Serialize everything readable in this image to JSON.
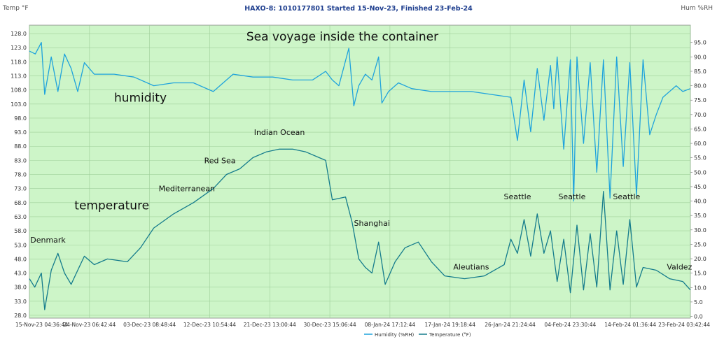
{
  "window": {
    "title": "HAXO-8: 1010177801 Started 15-Nov-23, Finished 23-Feb-24",
    "left_unit": "Temp °F",
    "right_unit": "Hum %RH"
  },
  "chart_data": {
    "type": "line",
    "plot_background": "#cdf5c8",
    "grid": true,
    "x_axis": {
      "type": "datetime",
      "range": [
        "2023-11-15T04:36:44",
        "2024-02-23T03:42:44"
      ],
      "tick_values": [
        "2023-11-15T04:36:44",
        "2023-11-24T06:42:44",
        "2023-12-03T08:48:44",
        "2023-12-12T10:54:44",
        "2023-12-21T13:00:44",
        "2023-12-30T15:06:44",
        "2024-01-08T17:12:44",
        "2024-01-17T19:18:44",
        "2024-01-26T21:24:44",
        "2024-02-04T23:30:44",
        "2024-02-14T01:36:44",
        "2024-02-23T03:42:44"
      ],
      "tick_labels": [
        "15-Nov-23 04:36:44",
        "24-Nov-23 06:42:44",
        "03-Dec-23 08:48:44",
        "12-Dec-23 10:54:44",
        "21-Dec-23 13:00:44",
        "30-Dec-23 15:06:44",
        "08-Jan-24 17:12:44",
        "17-Jan-24 19:18:44",
        "26-Jan-24 21:24:44",
        "04-Feb-24 23:30:44",
        "14-Feb-24 01:36:44",
        "23-Feb-24 03:42:44"
      ]
    },
    "y_left": {
      "unit": "Temp °F",
      "range": [
        27,
        131
      ],
      "ticks": [
        "128.0",
        "123.0",
        "118.0",
        "113.0",
        "108.0",
        "103.0",
        "98.0",
        "93.0",
        "88.0",
        "83.0",
        "78.0",
        "73.0",
        "68.0",
        "63.0",
        "58.0",
        "53.0",
        "48.0",
        "43.0",
        "38.0",
        "33.0",
        "28.0"
      ]
    },
    "y_right": {
      "unit": "Hum %RH",
      "range": [
        -0.6,
        101
      ],
      "ticks": [
        "95.0",
        "90.0",
        "85.0",
        "80.0",
        "75.0",
        "70.0",
        "65.0",
        "60.0",
        "55.0",
        "50.0",
        "45.0",
        "40.0",
        "35.0",
        "30.0",
        "25.0",
        "20.0",
        "15.0",
        "10.0",
        "5.0",
        "0.0"
      ]
    },
    "series": [
      {
        "name": "Humidity (%RH)",
        "axis": "right",
        "color": "#1fa3dc",
        "points": [
          [
            "2023-11-15T04:36:44",
            92
          ],
          [
            "2023-11-16T02:00:00",
            91
          ],
          [
            "2023-11-17T00:00:00",
            95
          ],
          [
            "2023-11-17T12:00:00",
            77
          ],
          [
            "2023-11-18T12:00:00",
            90
          ],
          [
            "2023-11-19T12:00:00",
            78
          ],
          [
            "2023-11-20T12:00:00",
            91
          ],
          [
            "2023-11-21T12:00:00",
            86
          ],
          [
            "2023-11-22T12:00:00",
            78
          ],
          [
            "2023-11-23T12:00:00",
            88
          ],
          [
            "2023-11-25T00:00:00",
            84
          ],
          [
            "2023-11-28T00:00:00",
            84
          ],
          [
            "2023-12-01T00:00:00",
            83
          ],
          [
            "2023-12-04T00:00:00",
            80
          ],
          [
            "2023-12-07T00:00:00",
            81
          ],
          [
            "2023-12-10T00:00:00",
            81
          ],
          [
            "2023-12-13T00:00:00",
            78
          ],
          [
            "2023-12-16T00:00:00",
            84
          ],
          [
            "2023-12-19T00:00:00",
            83
          ],
          [
            "2023-12-22T00:00:00",
            83
          ],
          [
            "2023-12-25T00:00:00",
            82
          ],
          [
            "2023-12-28T00:00:00",
            82
          ],
          [
            "2023-12-30T00:00:00",
            85
          ],
          [
            "2023-12-31T00:00:00",
            82
          ],
          [
            "2024-01-01T00:00:00",
            80
          ],
          [
            "2024-01-02T12:00:00",
            93
          ],
          [
            "2024-01-03T06:00:00",
            73
          ],
          [
            "2024-01-04T00:00:00",
            80
          ],
          [
            "2024-01-05T00:00:00",
            84
          ],
          [
            "2024-01-06T00:00:00",
            82
          ],
          [
            "2024-01-07T00:00:00",
            90
          ],
          [
            "2024-01-07T12:00:00",
            74
          ],
          [
            "2024-01-08T12:00:00",
            78
          ],
          [
            "2024-01-10T00:00:00",
            81
          ],
          [
            "2024-01-12T00:00:00",
            79
          ],
          [
            "2024-01-15T00:00:00",
            78
          ],
          [
            "2024-01-18T00:00:00",
            78
          ],
          [
            "2024-01-21T00:00:00",
            78
          ],
          [
            "2024-01-24T00:00:00",
            77
          ],
          [
            "2024-01-27T00:00:00",
            76
          ],
          [
            "2024-01-28T00:00:00",
            61
          ],
          [
            "2024-01-29T00:00:00",
            82
          ],
          [
            "2024-01-30T00:00:00",
            64
          ],
          [
            "2024-01-31T00:00:00",
            86
          ],
          [
            "2024-02-01T00:00:00",
            68
          ],
          [
            "2024-02-02T00:00:00",
            87
          ],
          [
            "2024-02-02T12:00:00",
            72
          ],
          [
            "2024-02-03T00:00:00",
            90
          ],
          [
            "2024-02-04T00:00:00",
            58
          ],
          [
            "2024-02-05T00:00:00",
            89
          ],
          [
            "2024-02-05T12:00:00",
            40
          ],
          [
            "2024-02-06T00:00:00",
            90
          ],
          [
            "2024-02-07T00:00:00",
            60
          ],
          [
            "2024-02-08T00:00:00",
            88
          ],
          [
            "2024-02-09T00:00:00",
            50
          ],
          [
            "2024-02-10T00:00:00",
            89
          ],
          [
            "2024-02-11T00:00:00",
            41
          ],
          [
            "2024-02-12T00:00:00",
            90
          ],
          [
            "2024-02-13T00:00:00",
            52
          ],
          [
            "2024-02-14T00:00:00",
            88
          ],
          [
            "2024-02-15T00:00:00",
            42
          ],
          [
            "2024-02-16T00:00:00",
            89
          ],
          [
            "2024-02-17T00:00:00",
            63
          ],
          [
            "2024-02-18T00:00:00",
            70
          ],
          [
            "2024-02-19T00:00:00",
            76
          ],
          [
            "2024-02-21T00:00:00",
            80
          ],
          [
            "2024-02-22T00:00:00",
            78
          ],
          [
            "2024-02-23T03:42:44",
            79
          ]
        ]
      },
      {
        "name": "Temperature (°F)",
        "axis": "left",
        "color": "#157c8c",
        "points": [
          [
            "2023-11-15T04:36:44",
            41
          ],
          [
            "2023-11-16T00:00:00",
            38
          ],
          [
            "2023-11-17T00:00:00",
            43
          ],
          [
            "2023-11-17T12:00:00",
            30
          ],
          [
            "2023-11-18T12:00:00",
            44
          ],
          [
            "2023-11-19T12:00:00",
            50
          ],
          [
            "2023-11-20T12:00:00",
            43
          ],
          [
            "2023-11-21T12:00:00",
            39
          ],
          [
            "2023-11-22T12:00:00",
            44
          ],
          [
            "2023-11-23T12:00:00",
            49
          ],
          [
            "2023-11-25T00:00:00",
            46
          ],
          [
            "2023-11-27T00:00:00",
            48
          ],
          [
            "2023-11-30T00:00:00",
            47
          ],
          [
            "2023-12-02T00:00:00",
            52
          ],
          [
            "2023-12-04T00:00:00",
            59
          ],
          [
            "2023-12-07T00:00:00",
            64
          ],
          [
            "2023-12-10T00:00:00",
            68
          ],
          [
            "2023-12-13T00:00:00",
            73
          ],
          [
            "2023-12-15T00:00:00",
            78
          ],
          [
            "2023-12-17T00:00:00",
            80
          ],
          [
            "2023-12-19T00:00:00",
            84
          ],
          [
            "2023-12-21T00:00:00",
            86
          ],
          [
            "2023-12-23T00:00:00",
            87
          ],
          [
            "2023-12-25T00:00:00",
            87
          ],
          [
            "2023-12-27T00:00:00",
            86
          ],
          [
            "2023-12-29T00:00:00",
            84
          ],
          [
            "2023-12-30T00:00:00",
            83
          ],
          [
            "2023-12-31T00:00:00",
            69
          ],
          [
            "2024-01-02T00:00:00",
            70
          ],
          [
            "2024-01-03T00:00:00",
            61
          ],
          [
            "2024-01-04T00:00:00",
            48
          ],
          [
            "2024-01-05T00:00:00",
            45
          ],
          [
            "2024-01-06T00:00:00",
            43
          ],
          [
            "2024-01-07T00:00:00",
            54
          ],
          [
            "2024-01-08T00:00:00",
            39
          ],
          [
            "2024-01-09T12:00:00",
            47
          ],
          [
            "2024-01-11T00:00:00",
            52
          ],
          [
            "2024-01-13T00:00:00",
            54
          ],
          [
            "2024-01-15T00:00:00",
            47
          ],
          [
            "2024-01-17T00:00:00",
            42
          ],
          [
            "2024-01-20T00:00:00",
            41
          ],
          [
            "2024-01-23T00:00:00",
            42
          ],
          [
            "2024-01-26T00:00:00",
            46
          ],
          [
            "2024-01-27T00:00:00",
            55
          ],
          [
            "2024-01-28T00:00:00",
            50
          ],
          [
            "2024-01-29T00:00:00",
            62
          ],
          [
            "2024-01-30T00:00:00",
            49
          ],
          [
            "2024-01-31T00:00:00",
            64
          ],
          [
            "2024-02-01T00:00:00",
            50
          ],
          [
            "2024-02-02T00:00:00",
            58
          ],
          [
            "2024-02-03T00:00:00",
            40
          ],
          [
            "2024-02-04T00:00:00",
            55
          ],
          [
            "2024-02-05T00:00:00",
            36
          ],
          [
            "2024-02-06T00:00:00",
            60
          ],
          [
            "2024-02-07T00:00:00",
            37
          ],
          [
            "2024-02-08T00:00:00",
            57
          ],
          [
            "2024-02-09T00:00:00",
            38
          ],
          [
            "2024-02-10T00:00:00",
            72
          ],
          [
            "2024-02-11T00:00:00",
            37
          ],
          [
            "2024-02-12T00:00:00",
            58
          ],
          [
            "2024-02-13T00:00:00",
            39
          ],
          [
            "2024-02-14T00:00:00",
            62
          ],
          [
            "2024-02-15T00:00:00",
            38
          ],
          [
            "2024-02-16T00:00:00",
            45
          ],
          [
            "2024-02-18T00:00:00",
            44
          ],
          [
            "2024-02-20T00:00:00",
            41
          ],
          [
            "2024-02-22T00:00:00",
            40
          ],
          [
            "2024-02-23T03:42:44",
            37
          ]
        ]
      }
    ],
    "annotations": [
      {
        "text": "Sea voyage inside the container",
        "x": "2023-12-18T00:00:00",
        "y": 125.5,
        "axis": "left",
        "size": "large"
      },
      {
        "text": "humidity",
        "x": "2023-11-28T00:00:00",
        "y": 103.8,
        "axis": "left",
        "size": "large"
      },
      {
        "text": "temperature",
        "x": "2023-11-22T00:00:00",
        "y": 65.6,
        "axis": "left",
        "size": "large"
      },
      {
        "text": "Denmark",
        "x": "2023-11-18T00:00:00",
        "y": 53.8,
        "axis": "left",
        "size": "small"
      },
      {
        "text": "Mediterranean",
        "x": "2023-12-09T00:00:00",
        "y": 72.0,
        "axis": "left",
        "size": "small"
      },
      {
        "text": "Red Sea",
        "x": "2023-12-14T00:00:00",
        "y": 82.0,
        "axis": "left",
        "size": "small"
      },
      {
        "text": "Indian Ocean",
        "x": "2023-12-23T00:00:00",
        "y": 92.0,
        "axis": "left",
        "size": "small"
      },
      {
        "text": "Shanghai",
        "x": "2024-01-06T00:00:00",
        "y": 59.8,
        "axis": "left",
        "size": "small"
      },
      {
        "text": "Aleutians",
        "x": "2024-01-21T00:00:00",
        "y": 44.2,
        "axis": "left",
        "size": "small"
      },
      {
        "text": "Seattle",
        "x": "2024-01-28T00:00:00",
        "y": 69.2,
        "axis": "left",
        "size": "small"
      },
      {
        "text": "Seattle",
        "x": "2024-02-05T06:00:00",
        "y": 69.2,
        "axis": "left",
        "size": "small"
      },
      {
        "text": "Seattle",
        "x": "2024-02-13T12:00:00",
        "y": 69.2,
        "axis": "left",
        "size": "small"
      },
      {
        "text": "Valdez",
        "x": "2024-02-21T12:00:00",
        "y": 44.2,
        "axis": "left",
        "size": "small"
      }
    ],
    "legend": {
      "position": "bottom-center",
      "items": [
        "Humidity (%RH)",
        "Temperature (°F)"
      ]
    }
  }
}
